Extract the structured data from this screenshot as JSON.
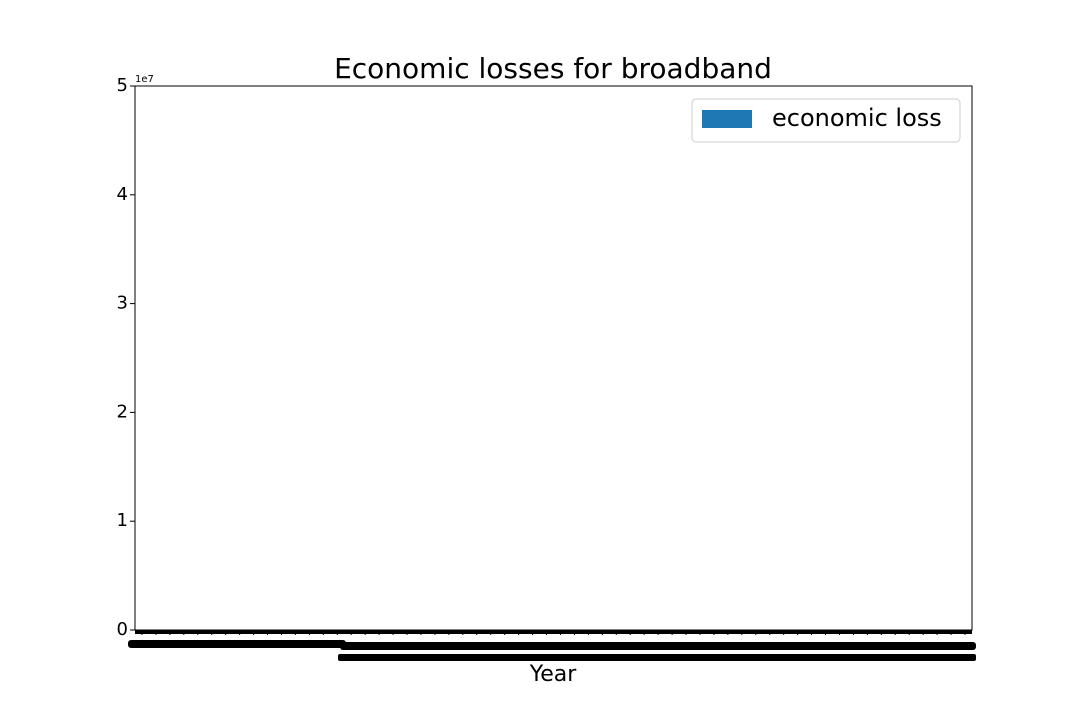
{
  "chart_data": {
    "type": "bar",
    "title": "Economic losses for broadband",
    "x_label": "Year",
    "y_offset_label": "1e7",
    "categories": [
      null,
      null,
      null,
      null,
      null,
      null,
      null,
      null,
      null,
      null,
      null,
      null,
      null,
      null,
      null,
      null,
      null,
      null,
      null,
      null,
      null,
      null,
      null,
      null,
      null,
      null,
      null,
      null,
      null,
      null,
      null,
      null,
      null,
      null,
      null,
      null,
      null,
      null,
      null,
      null,
      null,
      null,
      null,
      null,
      null,
      null,
      null,
      null,
      null,
      null,
      null,
      null,
      null,
      null,
      null,
      null,
      null,
      null,
      null,
      null
    ],
    "series": [
      {
        "name": "economic loss",
        "color": "#1f77b4",
        "values": [
          0,
          0,
          0,
          0,
          0,
          0,
          0,
          0,
          0,
          0,
          0,
          0,
          0,
          0,
          0,
          0,
          0,
          0,
          0,
          0,
          0,
          0,
          0,
          0,
          0,
          0,
          0,
          0,
          0,
          0,
          0,
          0,
          0,
          0,
          0,
          0,
          0,
          0,
          0,
          0,
          0,
          0,
          0,
          0,
          0,
          0,
          0,
          0,
          0,
          0,
          0,
          0,
          0,
          0,
          0,
          0,
          0,
          0,
          0,
          0
        ]
      }
    ],
    "ylim": [
      0,
      50000000
    ],
    "yticks": [
      {
        "value": 0,
        "label": "0"
      },
      {
        "value": 10000000,
        "label": "1"
      },
      {
        "value": 20000000,
        "label": "2"
      },
      {
        "value": 30000000,
        "label": "3"
      },
      {
        "value": 40000000,
        "label": "4"
      },
      {
        "value": 50000000,
        "label": "5"
      }
    ],
    "legend": "upper right"
  }
}
